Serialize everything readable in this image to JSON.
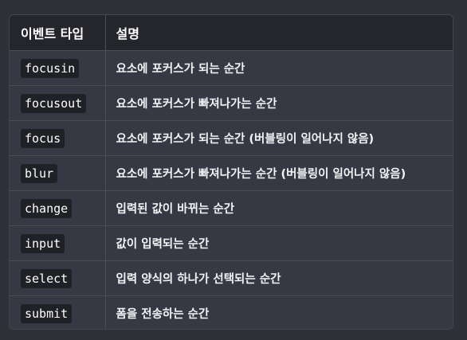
{
  "table": {
    "headers": [
      "이벤트 타입",
      "설명"
    ],
    "rows": [
      {
        "type": "focusin",
        "desc": "요소에 포커스가 되는 순간"
      },
      {
        "type": "focusout",
        "desc": "요소에 포커스가 빠져나가는 순간"
      },
      {
        "type": "focus",
        "desc": "요소에 포커스가 되는 순간 (버블링이 일어나지 않음)"
      },
      {
        "type": "blur",
        "desc": "요소에 포커스가 빠져나가는 순간 (버블링이 일어나지 않음)"
      },
      {
        "type": "change",
        "desc": "입력된 값이 바뀌는 순간"
      },
      {
        "type": "input",
        "desc": "값이 입력되는 순간"
      },
      {
        "type": "select",
        "desc": "입력 양식의 하나가 선택되는 순간"
      },
      {
        "type": "submit",
        "desc": "폼을 전송하는 순간"
      }
    ]
  }
}
